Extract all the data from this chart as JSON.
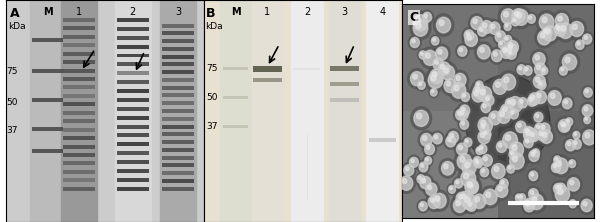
{
  "fig_width": 6.0,
  "fig_height": 2.22,
  "dpi": 100,
  "panel_A_label": "A",
  "panel_B_label": "B",
  "panel_C_label": "C",
  "kda_label": "kDa",
  "mw_markers": [
    75,
    50,
    37
  ],
  "lane_labels_A": [
    "M",
    "1",
    "2",
    "3"
  ],
  "lane_labels_B": [
    "M",
    "1",
    "2",
    "3",
    "4"
  ],
  "bg_color_A": "#d8d8d8",
  "bg_color_B": "#f0ece4",
  "lane1_A_color": "#888888",
  "lane2_A_color": "#c8c8c8",
  "lane3_A_color": "#909090",
  "scale_bar_color": "#ffffff",
  "arrow_color": "#000000"
}
